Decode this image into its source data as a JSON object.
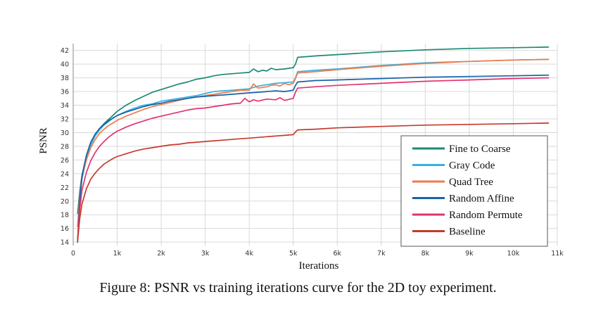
{
  "caption": "Figure 8: PSNR vs training iterations curve for the 2D toy experiment.",
  "chart_data": {
    "type": "line",
    "title": "",
    "xlabel": "Iterations",
    "ylabel": "PSNR",
    "xlim": [
      0,
      11000
    ],
    "ylim": [
      13.5,
      43
    ],
    "xticks": [
      0,
      1000,
      2000,
      3000,
      4000,
      5000,
      6000,
      7000,
      8000,
      9000,
      10000,
      11000
    ],
    "xtick_labels": [
      "0",
      "1k",
      "2k",
      "3k",
      "4k",
      "5k",
      "6k",
      "7k",
      "8k",
      "9k",
      "10k",
      "11k"
    ],
    "yticks": [
      14,
      16,
      18,
      20,
      22,
      24,
      26,
      28,
      30,
      32,
      34,
      36,
      38,
      40,
      42
    ],
    "ytick_labels": [
      "14",
      "16",
      "18",
      "20",
      "22",
      "24",
      "26",
      "28",
      "30",
      "32",
      "34",
      "36",
      "38",
      "40",
      "42"
    ],
    "grid": true,
    "legend_position": "bottom-right",
    "series": [
      {
        "name": "Fine to Coarse",
        "color": "#1a8a72",
        "points": [
          [
            100,
            18.2
          ],
          [
            150,
            21.5
          ],
          [
            200,
            23.8
          ],
          [
            300,
            26.5
          ],
          [
            400,
            28.4
          ],
          [
            500,
            29.7
          ],
          [
            600,
            30.6
          ],
          [
            700,
            31.3
          ],
          [
            800,
            31.9
          ],
          [
            900,
            32.5
          ],
          [
            1000,
            33.1
          ],
          [
            1200,
            34.0
          ],
          [
            1400,
            34.7
          ],
          [
            1600,
            35.3
          ],
          [
            1800,
            35.9
          ],
          [
            2000,
            36.3
          ],
          [
            2200,
            36.7
          ],
          [
            2400,
            37.1
          ],
          [
            2600,
            37.4
          ],
          [
            2800,
            37.8
          ],
          [
            3000,
            38.0
          ],
          [
            3200,
            38.3
          ],
          [
            3400,
            38.5
          ],
          [
            3600,
            38.6
          ],
          [
            3800,
            38.7
          ],
          [
            4000,
            38.8
          ],
          [
            4100,
            39.3
          ],
          [
            4200,
            38.9
          ],
          [
            4300,
            39.1
          ],
          [
            4400,
            39.0
          ],
          [
            4500,
            39.4
          ],
          [
            4600,
            39.2
          ],
          [
            4800,
            39.3
          ],
          [
            5000,
            39.5
          ],
          [
            5050,
            40.0
          ],
          [
            5100,
            41.0
          ],
          [
            5500,
            41.2
          ],
          [
            6000,
            41.4
          ],
          [
            7000,
            41.8
          ],
          [
            8000,
            42.1
          ],
          [
            9000,
            42.3
          ],
          [
            10000,
            42.4
          ],
          [
            10800,
            42.5
          ]
        ]
      },
      {
        "name": "Gray Code",
        "color": "#36b2e0",
        "points": [
          [
            100,
            14.2
          ],
          [
            150,
            20.0
          ],
          [
            200,
            23.2
          ],
          [
            300,
            26.2
          ],
          [
            400,
            28.2
          ],
          [
            500,
            29.5
          ],
          [
            600,
            30.4
          ],
          [
            700,
            31.1
          ],
          [
            800,
            31.6
          ],
          [
            900,
            32.1
          ],
          [
            1000,
            32.5
          ],
          [
            1200,
            33.1
          ],
          [
            1400,
            33.6
          ],
          [
            1600,
            34.0
          ],
          [
            1800,
            34.2
          ],
          [
            2000,
            34.6
          ],
          [
            2200,
            34.8
          ],
          [
            2400,
            35.0
          ],
          [
            2600,
            35.2
          ],
          [
            2800,
            35.4
          ],
          [
            3000,
            35.7
          ],
          [
            3200,
            36.0
          ],
          [
            3400,
            36.1
          ],
          [
            3600,
            36.2
          ],
          [
            3800,
            36.3
          ],
          [
            4000,
            36.4
          ],
          [
            4200,
            36.8
          ],
          [
            4400,
            37.0
          ],
          [
            4600,
            37.2
          ],
          [
            4800,
            37.3
          ],
          [
            5000,
            37.4
          ],
          [
            5050,
            38.0
          ],
          [
            5100,
            38.9
          ],
          [
            5500,
            39.1
          ],
          [
            6000,
            39.3
          ],
          [
            7000,
            39.8
          ],
          [
            8000,
            40.2
          ],
          [
            9000,
            40.4
          ],
          [
            10000,
            40.6
          ],
          [
            10800,
            40.7
          ]
        ]
      },
      {
        "name": "Quad Tree",
        "color": "#f07a4a",
        "points": [
          [
            100,
            16.3
          ],
          [
            150,
            21.0
          ],
          [
            200,
            23.5
          ],
          [
            300,
            26.0
          ],
          [
            400,
            27.8
          ],
          [
            500,
            29.0
          ],
          [
            600,
            29.9
          ],
          [
            700,
            30.5
          ],
          [
            800,
            31.0
          ],
          [
            900,
            31.4
          ],
          [
            1000,
            31.8
          ],
          [
            1200,
            32.4
          ],
          [
            1400,
            32.9
          ],
          [
            1600,
            33.4
          ],
          [
            1800,
            33.8
          ],
          [
            2000,
            34.1
          ],
          [
            2200,
            34.4
          ],
          [
            2400,
            34.7
          ],
          [
            2600,
            35.0
          ],
          [
            2800,
            35.2
          ],
          [
            3000,
            35.4
          ],
          [
            3200,
            35.6
          ],
          [
            3400,
            35.8
          ],
          [
            3600,
            36.0
          ],
          [
            3800,
            36.2
          ],
          [
            4000,
            36.2
          ],
          [
            4100,
            37.1
          ],
          [
            4200,
            36.5
          ],
          [
            4400,
            36.7
          ],
          [
            4500,
            36.9
          ],
          [
            4600,
            37.0
          ],
          [
            4700,
            36.8
          ],
          [
            4800,
            37.2
          ],
          [
            4900,
            37.0
          ],
          [
            5000,
            37.2
          ],
          [
            5050,
            37.9
          ],
          [
            5100,
            38.7
          ],
          [
            5500,
            38.9
          ],
          [
            6000,
            39.2
          ],
          [
            7000,
            39.7
          ],
          [
            8000,
            40.1
          ],
          [
            9000,
            40.4
          ],
          [
            10000,
            40.6
          ],
          [
            10800,
            40.7
          ]
        ]
      },
      {
        "name": "Random Affine",
        "color": "#1862a8",
        "points": [
          [
            100,
            14.0
          ],
          [
            150,
            20.3
          ],
          [
            200,
            23.6
          ],
          [
            300,
            26.7
          ],
          [
            400,
            28.6
          ],
          [
            500,
            29.8
          ],
          [
            600,
            30.6
          ],
          [
            700,
            31.2
          ],
          [
            800,
            31.7
          ],
          [
            900,
            32.1
          ],
          [
            1000,
            32.5
          ],
          [
            1200,
            33.0
          ],
          [
            1400,
            33.4
          ],
          [
            1600,
            33.8
          ],
          [
            1800,
            34.1
          ],
          [
            2000,
            34.3
          ],
          [
            2200,
            34.6
          ],
          [
            2400,
            34.8
          ],
          [
            2600,
            35.0
          ],
          [
            2800,
            35.2
          ],
          [
            3000,
            35.3
          ],
          [
            3200,
            35.4
          ],
          [
            3400,
            35.5
          ],
          [
            3600,
            35.6
          ],
          [
            3800,
            35.7
          ],
          [
            4000,
            35.8
          ],
          [
            4200,
            35.9
          ],
          [
            4400,
            36.0
          ],
          [
            4600,
            36.1
          ],
          [
            4800,
            36.0
          ],
          [
            5000,
            36.2
          ],
          [
            5050,
            36.9
          ],
          [
            5100,
            37.4
          ],
          [
            5500,
            37.6
          ],
          [
            6000,
            37.7
          ],
          [
            7000,
            37.9
          ],
          [
            8000,
            38.1
          ],
          [
            9000,
            38.2
          ],
          [
            10000,
            38.3
          ],
          [
            10800,
            38.4
          ]
        ]
      },
      {
        "name": "Random Permute",
        "color": "#e2336e",
        "points": [
          [
            100,
            14.5
          ],
          [
            150,
            18.8
          ],
          [
            200,
            21.6
          ],
          [
            300,
            24.2
          ],
          [
            400,
            25.9
          ],
          [
            500,
            27.1
          ],
          [
            600,
            28.0
          ],
          [
            700,
            28.7
          ],
          [
            800,
            29.3
          ],
          [
            900,
            29.8
          ],
          [
            1000,
            30.2
          ],
          [
            1200,
            30.8
          ],
          [
            1400,
            31.3
          ],
          [
            1600,
            31.7
          ],
          [
            1800,
            32.1
          ],
          [
            2000,
            32.4
          ],
          [
            2200,
            32.7
          ],
          [
            2400,
            33.0
          ],
          [
            2600,
            33.3
          ],
          [
            2800,
            33.5
          ],
          [
            3000,
            33.6
          ],
          [
            3200,
            33.8
          ],
          [
            3400,
            34.0
          ],
          [
            3600,
            34.2
          ],
          [
            3800,
            34.3
          ],
          [
            3900,
            35.0
          ],
          [
            4000,
            34.5
          ],
          [
            4100,
            34.8
          ],
          [
            4200,
            34.6
          ],
          [
            4400,
            34.9
          ],
          [
            4600,
            34.8
          ],
          [
            4700,
            35.1
          ],
          [
            4800,
            34.7
          ],
          [
            5000,
            35.0
          ],
          [
            5050,
            35.9
          ],
          [
            5100,
            36.5
          ],
          [
            5500,
            36.7
          ],
          [
            6000,
            36.9
          ],
          [
            7000,
            37.2
          ],
          [
            8000,
            37.5
          ],
          [
            9000,
            37.7
          ],
          [
            10000,
            37.9
          ],
          [
            10800,
            38.0
          ]
        ]
      },
      {
        "name": "Baseline",
        "color": "#c63a2d",
        "points": [
          [
            100,
            14.2
          ],
          [
            150,
            17.5
          ],
          [
            200,
            19.6
          ],
          [
            300,
            21.8
          ],
          [
            400,
            23.2
          ],
          [
            500,
            24.1
          ],
          [
            600,
            24.8
          ],
          [
            700,
            25.4
          ],
          [
            800,
            25.8
          ],
          [
            900,
            26.2
          ],
          [
            1000,
            26.5
          ],
          [
            1200,
            26.9
          ],
          [
            1400,
            27.3
          ],
          [
            1600,
            27.6
          ],
          [
            1800,
            27.8
          ],
          [
            2000,
            28.0
          ],
          [
            2200,
            28.2
          ],
          [
            2400,
            28.3
          ],
          [
            2600,
            28.5
          ],
          [
            2800,
            28.6
          ],
          [
            3000,
            28.7
          ],
          [
            3200,
            28.8
          ],
          [
            3400,
            28.9
          ],
          [
            3600,
            29.0
          ],
          [
            3800,
            29.1
          ],
          [
            4000,
            29.2
          ],
          [
            4200,
            29.3
          ],
          [
            4400,
            29.4
          ],
          [
            4600,
            29.5
          ],
          [
            4800,
            29.6
          ],
          [
            5000,
            29.7
          ],
          [
            5050,
            30.1
          ],
          [
            5100,
            30.4
          ],
          [
            5500,
            30.5
          ],
          [
            6000,
            30.7
          ],
          [
            7000,
            30.9
          ],
          [
            8000,
            31.1
          ],
          [
            9000,
            31.2
          ],
          [
            10000,
            31.3
          ],
          [
            10800,
            31.4
          ]
        ]
      }
    ]
  }
}
